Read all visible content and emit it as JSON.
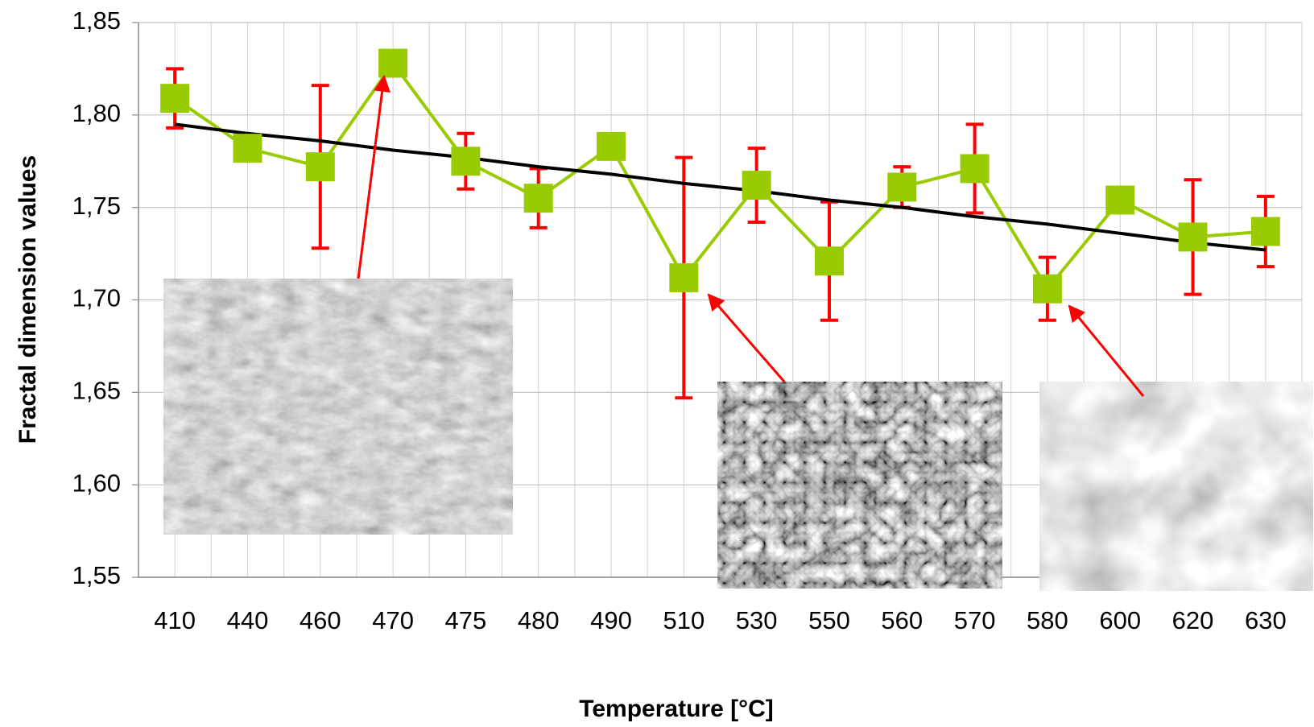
{
  "chart_data": {
    "type": "line",
    "x_label": "Temperature [°C]",
    "y_label": "Fractal dimension values",
    "categories": [
      "410",
      "440",
      "460",
      "470",
      "475",
      "480",
      "490",
      "510",
      "530",
      "550",
      "560",
      "570",
      "580",
      "600",
      "620",
      "630"
    ],
    "series": [
      {
        "color": "#99cc00",
        "error_color": "#ff0000",
        "values": [
          1.809,
          1.782,
          1.772,
          1.828,
          1.775,
          1.755,
          1.783,
          1.712,
          1.762,
          1.721,
          1.761,
          1.771,
          1.706,
          1.754,
          1.734,
          1.737
        ],
        "errors": [
          0.016,
          null,
          0.044,
          null,
          0.015,
          0.016,
          null,
          0.065,
          0.02,
          0.032,
          0.011,
          0.024,
          0.017,
          null,
          0.031,
          0.019
        ]
      }
    ],
    "trend": {
      "color": "#000000",
      "values": [
        1.795,
        1.79,
        1.786,
        1.781,
        1.777,
        1.772,
        1.768,
        1.763,
        1.759,
        1.754,
        1.75,
        1.745,
        1.741,
        1.736,
        1.731,
        1.727
      ]
    },
    "ylim": [
      1.55,
      1.85
    ],
    "yticks": [
      {
        "value": 1.55,
        "label": "1,55"
      },
      {
        "value": 1.6,
        "label": "1,60"
      },
      {
        "value": 1.65,
        "label": "1,65"
      },
      {
        "value": 1.7,
        "label": "1,70"
      },
      {
        "value": 1.75,
        "label": "1,75"
      },
      {
        "value": 1.8,
        "label": "1,80"
      },
      {
        "value": 1.85,
        "label": "1,85"
      }
    ],
    "grid": true
  }
}
